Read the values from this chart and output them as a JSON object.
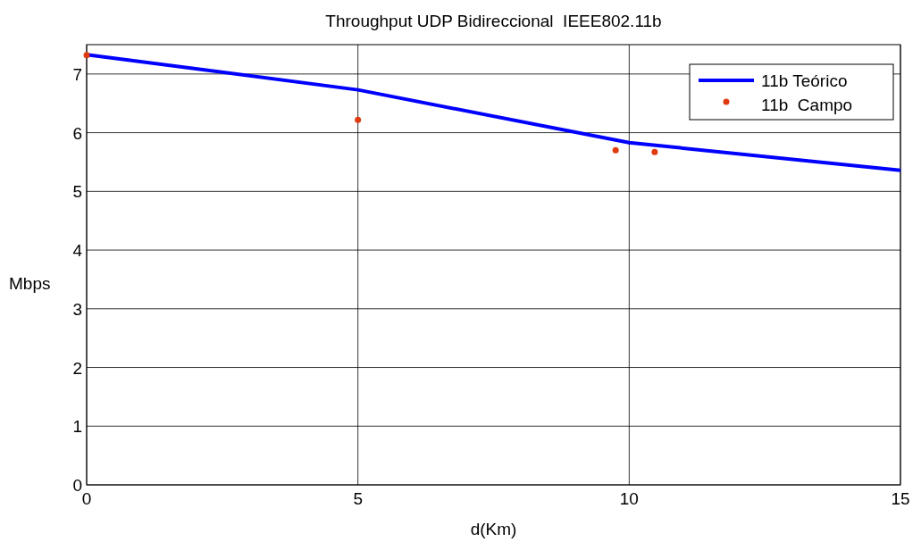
{
  "chart_data": {
    "type": "line",
    "title": "Throughput UDP Bidireccional  IEEE802.11b",
    "xlabel": "d(Km)",
    "ylabel": "Mbps",
    "xlim": [
      0,
      15
    ],
    "xticks": [
      0,
      5,
      10,
      15
    ],
    "ylim": [
      0,
      7.5
    ],
    "yticks": [
      0,
      1,
      2,
      3,
      4,
      5,
      6,
      7
    ],
    "grid": true,
    "legend": "top right",
    "series": [
      {
        "name": "11b Teórico",
        "color": "#0000ff",
        "x": [
          0,
          5,
          10,
          15
        ],
        "values": [
          7.33,
          6.73,
          5.83,
          5.36
        ]
      },
      {
        "name": "11b  Campo",
        "type": "scatter",
        "color": "#e03a10",
        "x": [
          0,
          5,
          9.75,
          10.47
        ],
        "values": [
          7.32,
          6.22,
          5.7,
          5.67
        ]
      }
    ]
  }
}
